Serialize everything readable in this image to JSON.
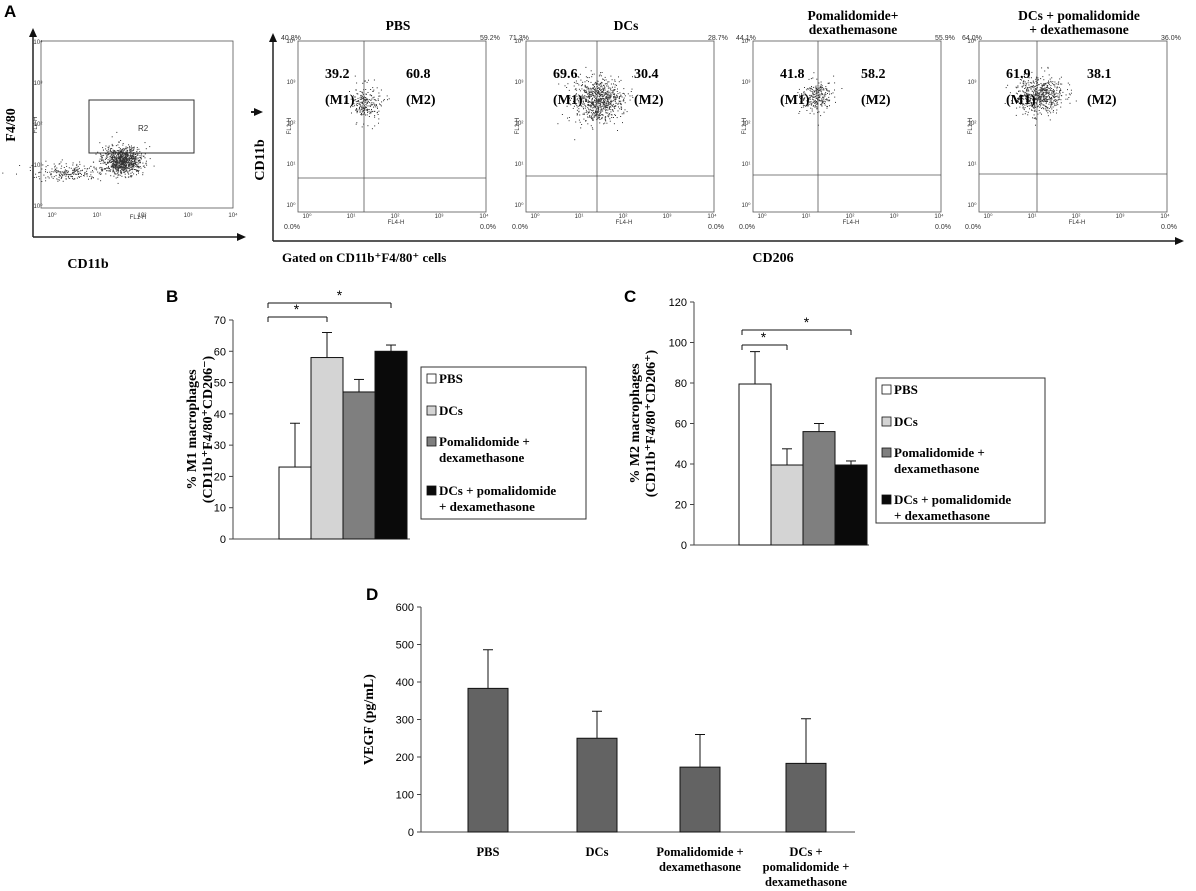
{
  "panel_letters": {
    "a": "A",
    "b": "B",
    "c": "C",
    "d": "D"
  },
  "flow": {
    "gate_plot": {
      "y_label": "F4/80",
      "x_label": "CD11b",
      "gate_label": "R2",
      "fl2_label": "FL2-H",
      "fl1_label": "FL1-H",
      "ticks": [
        "10⁰",
        "10¹",
        "10²",
        "10³",
        "10⁴"
      ]
    },
    "y_label": "CD11b",
    "x_label": "CD206",
    "gated_note": "Gated on CD11b⁺F4/80⁺ cells",
    "axis_y_small": "FL1-H",
    "axis_x_small": "FL4-H",
    "plots": [
      {
        "title_lines": [
          "PBS"
        ],
        "left_value": "39.2",
        "right_value": "60.8",
        "left_label": "(M1)",
        "right_label": "(M2)",
        "corner_tl": "40.8%",
        "corner_tr": "59.2%",
        "corner_bl": "0.0%",
        "corner_br": "0.0%"
      },
      {
        "title_lines": [
          "DCs"
        ],
        "left_value": "69.6",
        "right_value": "30.4",
        "left_label": "(M1)",
        "right_label": "(M2)",
        "corner_tl": "71.3%",
        "corner_tr": "28.7%",
        "corner_bl": "0.0%",
        "corner_br": "0.0%"
      },
      {
        "title_lines": [
          "Pomalidomide+",
          "dexathemasone"
        ],
        "left_value": "41.8",
        "right_value": "58.2",
        "left_label": "(M1)",
        "right_label": "(M2)",
        "corner_tl": "44.1%",
        "corner_tr": "55.9%",
        "corner_bl": "0.0%",
        "corner_br": "0.0%"
      },
      {
        "title_lines": [
          "DCs + pomalidomide",
          "+ dexathemasone"
        ],
        "left_value": "61.9",
        "right_value": "38.1",
        "left_label": "(M1)",
        "right_label": "(M2)",
        "corner_tl": "64.0%",
        "corner_tr": "36.0%",
        "corner_bl": "0.0%",
        "corner_br": "0.0%"
      }
    ]
  },
  "colors": {
    "pbs": "#ffffff",
    "dcs": "#d4d4d4",
    "poma": "#7f7f7f",
    "combo": "#0a0a0a",
    "vegf": "#636363"
  },
  "chart_data": [
    {
      "type": "bar",
      "panel": "B",
      "ylabel_lines": [
        "% M1 macrophages",
        "(CD11b⁺F4/80⁺CD206⁻)"
      ],
      "ylim": [
        0,
        70
      ],
      "yticks": [
        "0",
        "10",
        "20",
        "30",
        "40",
        "50",
        "60",
        "70"
      ],
      "categories": [
        "PBS",
        "DCs",
        "Pomalidomide + dexamethasone",
        "DCs + pomalidomide + dexamethasone"
      ],
      "values": [
        23,
        58,
        47,
        60
      ],
      "errors": [
        14,
        8,
        4,
        2
      ],
      "legend": [
        {
          "lines": [
            "PBS"
          ]
        },
        {
          "lines": [
            "DCs"
          ]
        },
        {
          "lines": [
            "Pomalidomide +",
            "dexamethasone"
          ]
        },
        {
          "lines": [
            "DCs + pomalidomide",
            "+ dexamethasone"
          ]
        }
      ],
      "significance": [
        {
          "from": 0,
          "to": 1,
          "label": "*"
        },
        {
          "from": 0,
          "to": 3,
          "label": "*"
        }
      ]
    },
    {
      "type": "bar",
      "panel": "C",
      "ylabel_lines": [
        "% M2 macrophages",
        "(CD11b⁺F4/80⁺CD206⁺)"
      ],
      "ylim": [
        0,
        120
      ],
      "yticks": [
        "0",
        "20",
        "40",
        "60",
        "80",
        "100",
        "120"
      ],
      "categories": [
        "PBS",
        "DCs",
        "Pomalidomide + dexamethasone",
        "DCs + pomalidomide + dexamethasone"
      ],
      "values": [
        79.5,
        39.5,
        56,
        39.5
      ],
      "errors": [
        16,
        8,
        4,
        2
      ],
      "legend": [
        {
          "lines": [
            "PBS"
          ]
        },
        {
          "lines": [
            "DCs"
          ]
        },
        {
          "lines": [
            "Pomalidomide +",
            "dexamethasone"
          ]
        },
        {
          "lines": [
            "DCs + pomalidomide",
            "+ dexamethasone"
          ]
        }
      ],
      "significance": [
        {
          "from": 0,
          "to": 1,
          "label": "*"
        },
        {
          "from": 0,
          "to": 3,
          "label": "*"
        }
      ]
    },
    {
      "type": "bar",
      "panel": "D",
      "ylabel_lines": [
        "VEGF (pg/mL)"
      ],
      "ylim": [
        0,
        600
      ],
      "yticks": [
        "0",
        "100",
        "200",
        "300",
        "400",
        "500",
        "600"
      ],
      "categories": [
        "PBS",
        "DCs",
        "Pomalidomide + dexamethasone",
        "DCs + pomalidomide + dexamethasone"
      ],
      "category_lines": [
        [
          "PBS"
        ],
        [
          "DCs"
        ],
        [
          "Pomalidomide +",
          "dexamethasone"
        ],
        [
          "DCs +",
          "pomalidomide +",
          "dexamethasone"
        ]
      ],
      "values": [
        383,
        250,
        173,
        183
      ],
      "errors": [
        103,
        72,
        87,
        119
      ]
    }
  ]
}
